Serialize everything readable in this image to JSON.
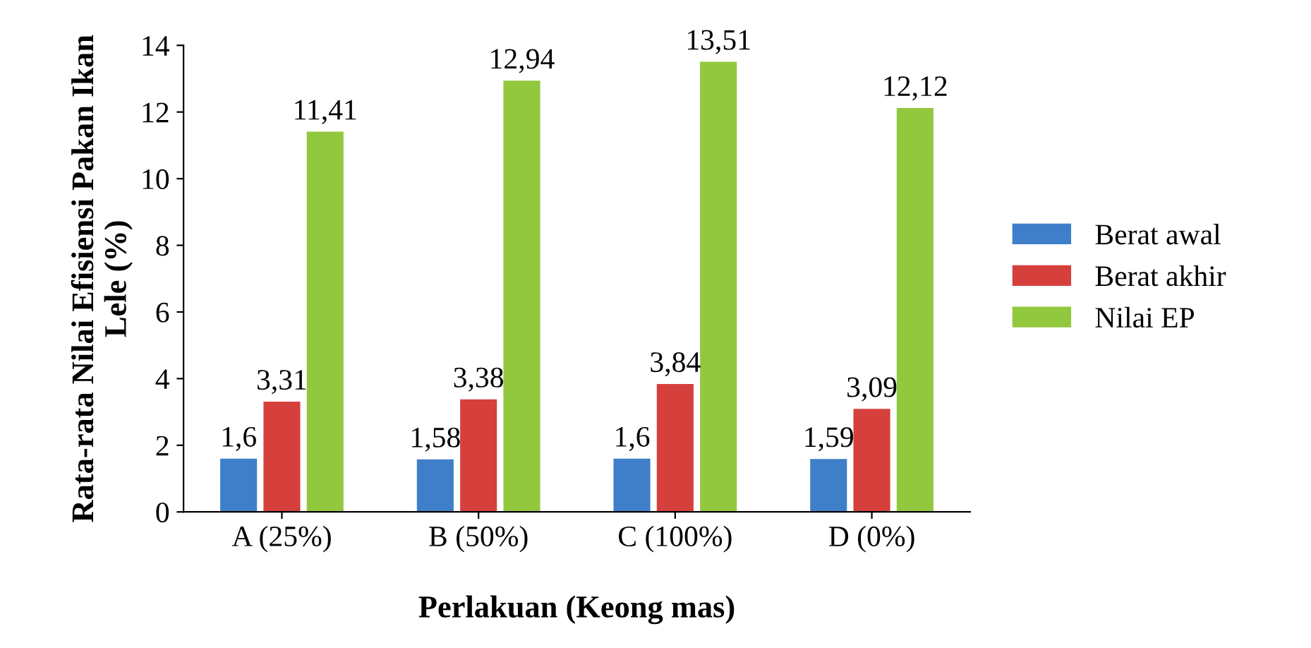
{
  "chart_data": {
    "type": "bar",
    "xlabel": "Perlakuan (Keong mas)",
    "ylabel": "Rata-rata Nilai Efisiensi Pakan Ikan\nLele (%)",
    "categories": [
      "A (25%)",
      "B (50%)",
      "C (100%)",
      "D (0%)"
    ],
    "series": [
      {
        "name": "Berat awal",
        "color": "#3f7fc9",
        "values": [
          1.6,
          1.58,
          1.6,
          1.59
        ],
        "value_labels": [
          "1,6",
          "1,58",
          "1,6",
          "1,59"
        ]
      },
      {
        "name": "Berat akhir",
        "color": "#d5403c",
        "values": [
          3.31,
          3.38,
          3.84,
          3.09
        ],
        "value_labels": [
          "3,31",
          "3,38",
          "3,84",
          "3,09"
        ]
      },
      {
        "name": "Nilai EP",
        "color": "#92c83e",
        "values": [
          11.41,
          12.94,
          13.51,
          12.12
        ],
        "value_labels": [
          "11,41",
          "12,94",
          "13,51",
          "12,12"
        ]
      }
    ],
    "ylim": [
      0,
      14
    ],
    "yticks": [
      0,
      2,
      4,
      6,
      8,
      10,
      12,
      14
    ],
    "grid": false,
    "legend": "right"
  }
}
